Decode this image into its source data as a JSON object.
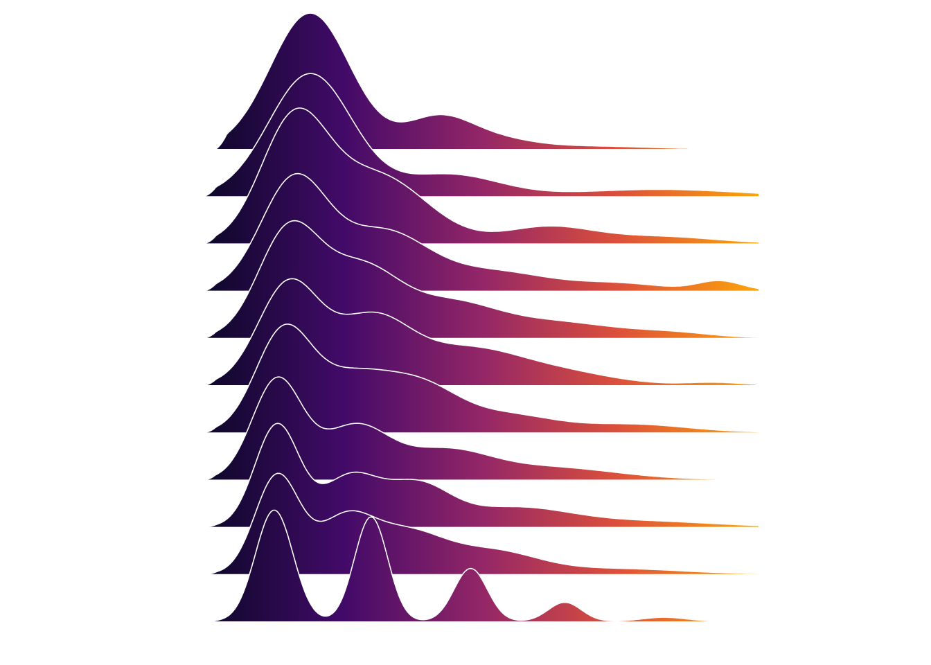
{
  "chart_data": {
    "type": "ridgeline",
    "title": "",
    "xlabel": "",
    "ylabel": "",
    "x_range": [
      0,
      1
    ],
    "ridge_count": 11,
    "fill_gradient": "inferno",
    "gradient_colors": [
      "#0d0829",
      "#420a68",
      "#932667",
      "#dd513a",
      "#fca50a"
    ],
    "outline_color": "#ffffff",
    "series": [
      {
        "x_start": 0.02,
        "x_end": 1.0,
        "peaks": [
          [
            0.19,
            1.0,
            0.072
          ],
          [
            0.42,
            0.22,
            0.06
          ],
          [
            0.52,
            0.07,
            0.07
          ],
          [
            0.7,
            0.02,
            0.1
          ]
        ]
      },
      {
        "x_start": 0.0,
        "x_end": 1.0,
        "peaks": [
          [
            0.19,
            0.9,
            0.075
          ],
          [
            0.44,
            0.16,
            0.09
          ],
          [
            0.82,
            0.05,
            0.14
          ]
        ]
      },
      {
        "x_start": 0.0,
        "x_end": 1.0,
        "peaks": [
          [
            0.16,
            0.86,
            0.06
          ],
          [
            0.31,
            0.5,
            0.09
          ],
          [
            0.62,
            0.12,
            0.08
          ],
          [
            0.82,
            0.05,
            0.1
          ]
        ]
      },
      {
        "x_start": 0.0,
        "x_end": 1.0,
        "peaks": [
          [
            0.16,
            0.8,
            0.06
          ],
          [
            0.32,
            0.42,
            0.08
          ],
          [
            0.52,
            0.14,
            0.1
          ],
          [
            0.75,
            0.05,
            0.08
          ],
          [
            0.93,
            0.07,
            0.04
          ]
        ]
      },
      {
        "x_start": 0.0,
        "x_end": 1.0,
        "peaks": [
          [
            0.15,
            0.76,
            0.055
          ],
          [
            0.28,
            0.5,
            0.07
          ],
          [
            0.44,
            0.22,
            0.08
          ],
          [
            0.62,
            0.12,
            0.12
          ],
          [
            0.85,
            0.03,
            0.07
          ]
        ]
      },
      {
        "x_start": 0.0,
        "x_end": 0.995,
        "peaks": [
          [
            0.15,
            0.73,
            0.055
          ],
          [
            0.3,
            0.48,
            0.07
          ],
          [
            0.47,
            0.24,
            0.09
          ],
          [
            0.63,
            0.1,
            0.1
          ],
          [
            0.92,
            0.02,
            0.05
          ]
        ]
      },
      {
        "x_start": 0.0,
        "x_end": 1.0,
        "peaks": [
          [
            0.14,
            0.7,
            0.05
          ],
          [
            0.26,
            0.38,
            0.07
          ],
          [
            0.39,
            0.32,
            0.07
          ],
          [
            0.55,
            0.12,
            0.08
          ],
          [
            0.77,
            0.06,
            0.1
          ]
        ]
      },
      {
        "x_start": 0.0,
        "x_end": 0.94,
        "peaks": [
          [
            0.13,
            0.73,
            0.045
          ],
          [
            0.27,
            0.38,
            0.06
          ],
          [
            0.43,
            0.2,
            0.08
          ],
          [
            0.62,
            0.09,
            0.12
          ]
        ]
      },
      {
        "x_start": 0.0,
        "x_end": 1.0,
        "peaks": [
          [
            0.13,
            0.75,
            0.04
          ],
          [
            0.26,
            0.35,
            0.05
          ],
          [
            0.38,
            0.3,
            0.06
          ],
          [
            0.56,
            0.14,
            0.1
          ],
          [
            0.8,
            0.04,
            0.12
          ]
        ]
      },
      {
        "x_start": 0.0,
        "x_end": 1.0,
        "peaks": [
          [
            0.13,
            0.72,
            0.04
          ],
          [
            0.25,
            0.36,
            0.05
          ],
          [
            0.36,
            0.3,
            0.07
          ],
          [
            0.52,
            0.16,
            0.08
          ],
          [
            0.74,
            0.04,
            0.12
          ]
        ]
      },
      {
        "x_start": 0.0,
        "x_end": 1.0,
        "peaks": [
          [
            0.125,
            0.82,
            0.034
          ],
          [
            0.3,
            0.77,
            0.03
          ],
          [
            0.48,
            0.39,
            0.03
          ],
          [
            0.65,
            0.14,
            0.03
          ],
          [
            0.83,
            0.03,
            0.04
          ]
        ]
      }
    ]
  }
}
